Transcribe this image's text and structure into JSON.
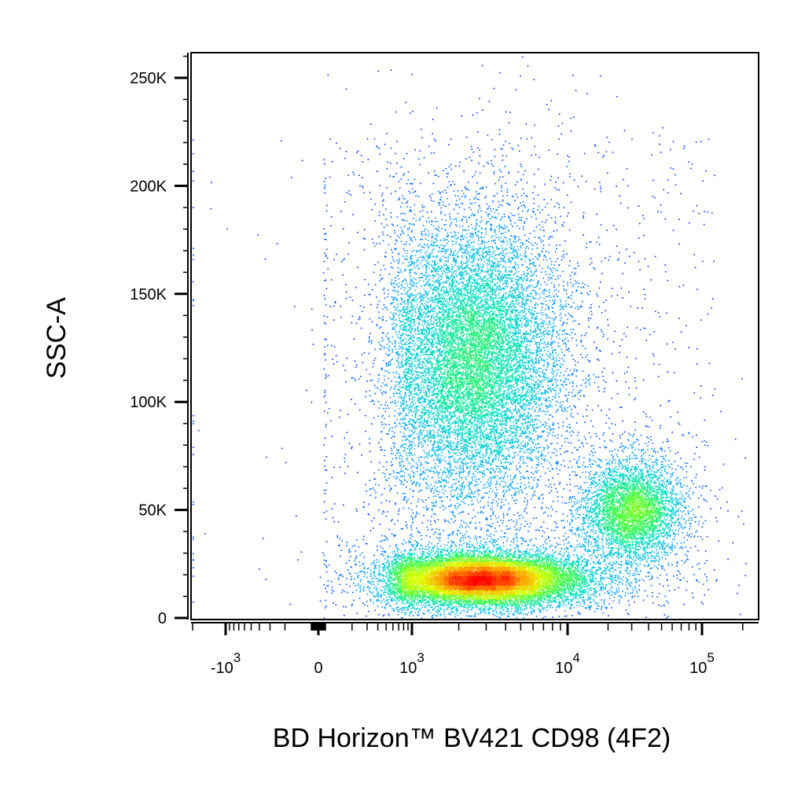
{
  "chart_data": {
    "type": "scatter",
    "style": "flow cytometry pseudocolor density dot plot",
    "xlabel": "BD Horizon™ BV421 CD98 (4F2)",
    "ylabel": "SSC-A",
    "x_scale": "biexponential (logicle)",
    "y_scale": "linear",
    "ylim": [
      0,
      262144
    ],
    "xlim": [
      -2000,
      262144
    ],
    "y_ticks": [
      {
        "value": 0,
        "label": "0"
      },
      {
        "value": 50000,
        "label": "50K"
      },
      {
        "value": 100000,
        "label": "100K"
      },
      {
        "value": 150000,
        "label": "150K"
      },
      {
        "value": 200000,
        "label": "200K"
      },
      {
        "value": 250000,
        "label": "250K"
      }
    ],
    "x_ticks": [
      {
        "value": -1000,
        "base": "-10",
        "exp": "3"
      },
      {
        "value": 0,
        "base": "0",
        "exp": ""
      },
      {
        "value": 1000,
        "base": "10",
        "exp": "3"
      },
      {
        "value": 10000,
        "base": "10",
        "exp": "4"
      },
      {
        "value": 100000,
        "base": "10",
        "exp": "5"
      }
    ],
    "grid": false,
    "legend": "none",
    "color_scale": [
      "#0000ff",
      "#00a0ff",
      "#00e0c0",
      "#40ff40",
      "#e0ff00",
      "#ffa000",
      "#ff0000"
    ],
    "populations": [
      {
        "label": "CD98-dim SSC-low",
        "x_center": 2800,
        "y_center": 18000,
        "x_spread_decades": 0.32,
        "y_spread": 6000,
        "relative_density": 1.0
      },
      {
        "label": "CD98-intermediate SSC-high",
        "x_center": 2500,
        "y_center": 120000,
        "x_spread_decades": 0.28,
        "y_spread": 32000,
        "relative_density": 0.75
      },
      {
        "label": "CD98-bright SSC-mid",
        "x_center": 30000,
        "y_center": 50000,
        "x_spread_decades": 0.18,
        "y_spread": 12000,
        "relative_density": 0.35
      }
    ]
  }
}
